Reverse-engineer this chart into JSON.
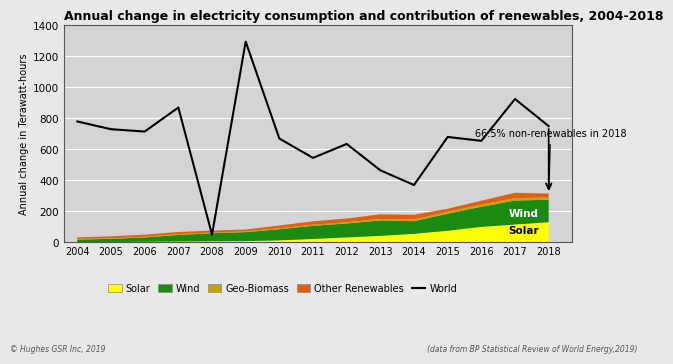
{
  "title": "Annual change in electricity consumption and contribution of renewables, 2004-2018",
  "ylabel": "Annual change in Terawatt-hours",
  "years": [
    2004,
    2005,
    2006,
    2007,
    2008,
    2009,
    2010,
    2011,
    2012,
    2013,
    2014,
    2015,
    2016,
    2017,
    2018
  ],
  "solar": [
    2,
    3,
    4,
    6,
    7,
    8,
    13,
    22,
    32,
    42,
    55,
    75,
    100,
    115,
    130
  ],
  "wind": [
    16,
    20,
    28,
    42,
    52,
    58,
    72,
    85,
    90,
    100,
    82,
    110,
    130,
    155,
    145
  ],
  "geo_biomass": [
    4,
    4,
    4,
    5,
    5,
    5,
    6,
    7,
    8,
    9,
    11,
    12,
    14,
    15,
    15
  ],
  "other_renewables": [
    10,
    12,
    14,
    14,
    12,
    12,
    18,
    22,
    24,
    30,
    30,
    20,
    25,
    35,
    25
  ],
  "world": [
    780,
    730,
    715,
    870,
    50,
    1295,
    670,
    545,
    635,
    465,
    370,
    680,
    655,
    925,
    750
  ],
  "solar_color": "#ffff00",
  "wind_color": "#1a8a10",
  "geo_biomass_color": "#c8a000",
  "other_renewables_color": "#e06010",
  "world_color": "#000000",
  "bg_color": "#d4d4d4",
  "fig_bg_color": "#e8e8e8",
  "ylim": [
    0,
    1400
  ],
  "yticks": [
    0,
    200,
    400,
    600,
    800,
    1000,
    1200,
    1400
  ],
  "annotation_text": "66.5% non-renewables in 2018",
  "footer_left": "© Hughes GSR Inc, 2019",
  "footer_right": "(data from BP Statistical Review of World Energy,2019)"
}
